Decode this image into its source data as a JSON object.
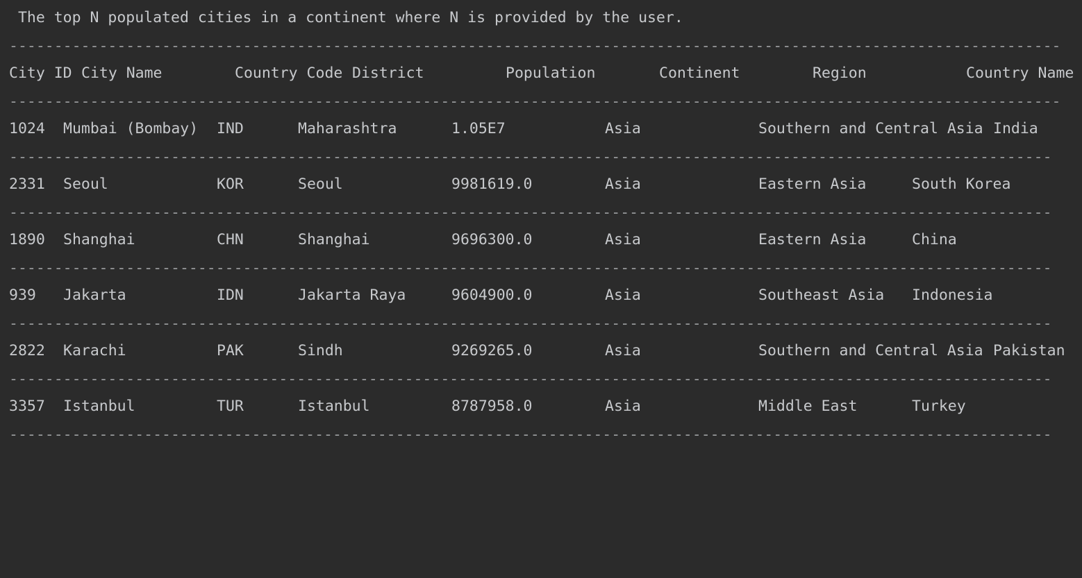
{
  "console": {
    "intro": " The top N populated cities in a continent where N is provided by the user.",
    "header_separator": "---------------------------------------------------------------------------------------------------------------------",
    "row_separator": "--------------------------------------------------------------------------------------------------------------------",
    "columns": [
      "City ID",
      "City Name",
      "Country Code",
      "District",
      "Population",
      "Continent",
      "Region",
      "Country Name"
    ],
    "rows": [
      {
        "id": "1024",
        "name": "Mumbai (Bombay)",
        "code": "IND",
        "district": "Maharashtra",
        "population": "1.05E7",
        "continent": "Asia",
        "region": "Southern and Central Asia",
        "country": "India"
      },
      {
        "id": "2331",
        "name": "Seoul",
        "code": "KOR",
        "district": "Seoul",
        "population": "9981619.0",
        "continent": "Asia",
        "region": "Eastern Asia",
        "country": "South Korea"
      },
      {
        "id": "1890",
        "name": "Shanghai",
        "code": "CHN",
        "district": "Shanghai",
        "population": "9696300.0",
        "continent": "Asia",
        "region": "Eastern Asia",
        "country": "China"
      },
      {
        "id": "939",
        "name": "Jakarta",
        "code": "IDN",
        "district": "Jakarta Raya",
        "population": "9604900.0",
        "continent": "Asia",
        "region": "Southeast Asia",
        "country": "Indonesia"
      },
      {
        "id": "2822",
        "name": "Karachi",
        "code": "PAK",
        "district": "Sindh",
        "population": "9269265.0",
        "continent": "Asia",
        "region": "Southern and Central Asia",
        "country": "Pakistan"
      },
      {
        "id": "3357",
        "name": "Istanbul",
        "code": "TUR",
        "district": "Istanbul",
        "population": "8787958.0",
        "continent": "Asia",
        "region": "Middle East",
        "country": "Turkey"
      }
    ]
  }
}
